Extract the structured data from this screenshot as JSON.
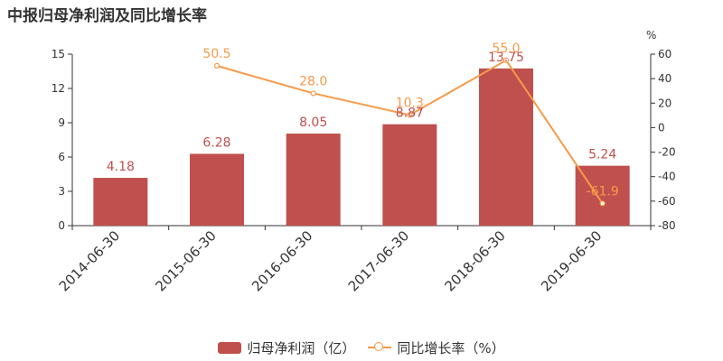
{
  "page": {
    "title": "中报归母净利润及同比增长率"
  },
  "colors": {
    "bar": "#c0504d",
    "line": "#f79a4a",
    "axis": "#333333",
    "bar_label": "#c0504d"
  },
  "legend": {
    "bar_label": "归母净利润（亿）",
    "line_label": "同比增长率（%）"
  },
  "chart_data": {
    "type": "bar",
    "title": "中报归母净利润及同比增长率",
    "categories": [
      "2014-06-30",
      "2015-06-30",
      "2016-06-30",
      "2017-06-30",
      "2018-06-30",
      "2019-06-30"
    ],
    "series": [
      {
        "name": "归母净利润（亿）",
        "type": "bar",
        "axis": "left",
        "values": [
          4.18,
          6.28,
          8.05,
          8.87,
          13.75,
          5.24
        ]
      },
      {
        "name": "同比增长率（%）",
        "type": "line",
        "axis": "right",
        "values": [
          null,
          50.5,
          28.0,
          10.3,
          55.0,
          -61.9
        ]
      }
    ],
    "y_left": {
      "min": 0,
      "max": 15,
      "ticks": [
        0,
        3,
        6,
        9,
        12,
        15
      ]
    },
    "y_right": {
      "min": -80,
      "max": 60,
      "ticks": [
        -80,
        -60,
        -40,
        -20,
        0,
        20,
        40,
        60
      ],
      "unit": "%"
    },
    "grid": false,
    "legend_position": "bottom"
  }
}
